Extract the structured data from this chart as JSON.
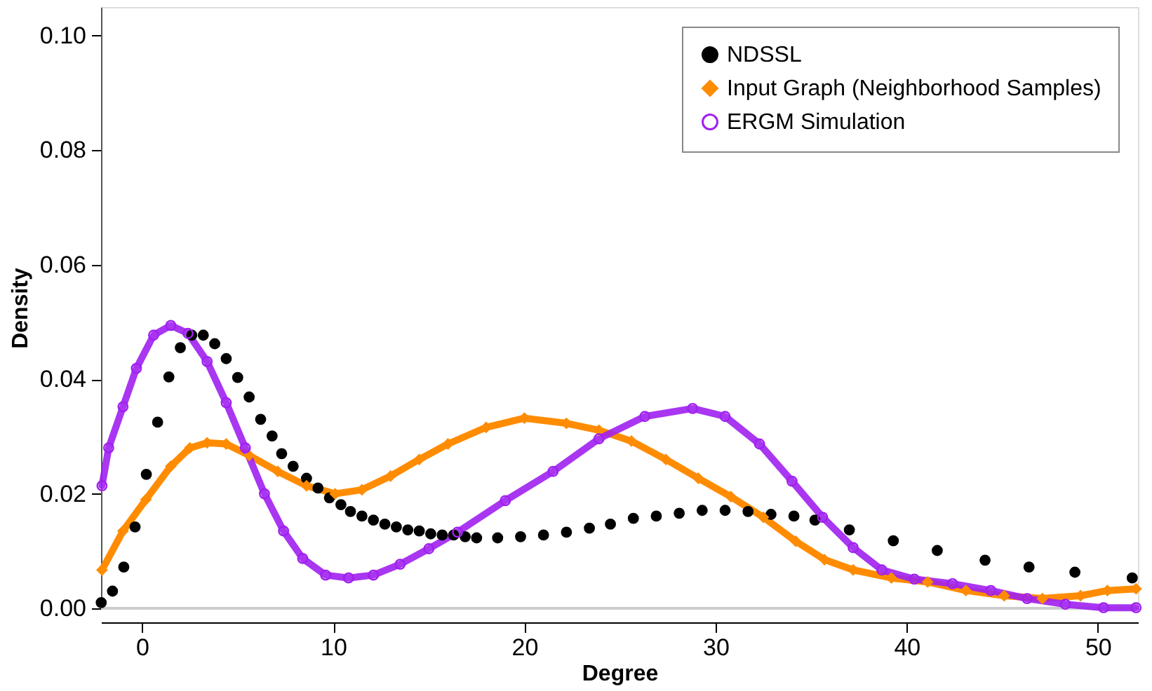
{
  "chart_data": {
    "type": "scatter",
    "xlabel": "Degree",
    "ylabel": "Density",
    "xlim": [
      -2.15,
      52.1
    ],
    "xticks": [
      0,
      10,
      20,
      30,
      40,
      50
    ],
    "ylim": [
      0,
      0.105
    ],
    "yticks": [
      {
        "value": 0,
        "label": "0.00"
      },
      {
        "value": 0.02,
        "label": "0.02"
      },
      {
        "value": 0.04,
        "label": "0.04"
      },
      {
        "value": 0.06,
        "label": "0.06"
      },
      {
        "value": 0.08,
        "label": "0.08"
      },
      {
        "value": 0.1,
        "label": "0.10"
      }
    ],
    "grid": false,
    "legend": "top right",
    "ref_lines": [
      {
        "axis": "y",
        "value": 0,
        "label": null,
        "color": "#cccccc"
      }
    ],
    "series": [
      {
        "name": "NDSSL",
        "marker": "circle",
        "color": "#000000",
        "x": [
          -2.14,
          -1.55,
          -0.96,
          -0.37,
          0.22,
          0.81,
          1.4,
          2.0,
          2.6,
          3.2,
          3.8,
          4.4,
          5.0,
          5.6,
          6.2,
          6.8,
          7.3,
          7.9,
          8.6,
          9.2,
          9.8,
          10.4,
          10.9,
          11.5,
          12.1,
          12.7,
          13.3,
          13.9,
          14.5,
          15.1,
          15.7,
          16.3,
          16.9,
          17.5,
          18.6,
          19.8,
          21.0,
          22.2,
          23.4,
          24.5,
          25.7,
          26.9,
          28.1,
          29.3,
          30.5,
          31.7,
          32.9,
          34.1,
          35.2,
          37.0,
          39.3,
          41.6,
          44.1,
          46.4,
          48.8,
          51.8
        ],
        "values": [
          0.001,
          0.003,
          0.0072,
          0.0142,
          0.0234,
          0.0325,
          0.0404,
          0.0455,
          0.0477,
          0.0477,
          0.0462,
          0.0436,
          0.0403,
          0.0369,
          0.033,
          0.0301,
          0.027,
          0.0248,
          0.0227,
          0.021,
          0.0193,
          0.0181,
          0.0169,
          0.0161,
          0.0154,
          0.0147,
          0.0142,
          0.0137,
          0.0135,
          0.013,
          0.0128,
          0.0128,
          0.0125,
          0.0123,
          0.0123,
          0.0125,
          0.0128,
          0.0133,
          0.014,
          0.0147,
          0.0157,
          0.0161,
          0.0166,
          0.0171,
          0.0171,
          0.0169,
          0.0164,
          0.0161,
          0.0154,
          0.0137,
          0.0118,
          0.0101,
          0.0084,
          0.0072,
          0.0063,
          0.0053
        ]
      },
      {
        "name": "Input Graph (Neighborhood Samples)",
        "type": "line",
        "marker": "diamond",
        "color": "#ff8c00",
        "x": [
          -2.1,
          -1.0,
          0.2,
          1.5,
          2.5,
          3.4,
          4.4,
          5.6,
          7.1,
          8.6,
          10.1,
          11.5,
          13.0,
          14.5,
          16.0,
          18.0,
          20.0,
          22.2,
          23.9,
          25.6,
          27.4,
          29.1,
          30.8,
          32.5,
          34.2,
          35.7,
          37.2,
          39.2,
          41.1,
          43.1,
          45.1,
          47.1,
          49.1,
          50.5,
          52.0
        ],
        "values": [
          0.0067,
          0.0135,
          0.019,
          0.0248,
          0.028,
          0.0289,
          0.0287,
          0.0267,
          0.0239,
          0.0214,
          0.02,
          0.0207,
          0.0231,
          0.026,
          0.0287,
          0.0316,
          0.0332,
          0.0323,
          0.0311,
          0.0292,
          0.026,
          0.0227,
          0.0195,
          0.0159,
          0.0117,
          0.0085,
          0.0067,
          0.0053,
          0.0046,
          0.0031,
          0.0022,
          0.0017,
          0.0022,
          0.0031,
          0.0034
        ]
      },
      {
        "name": "ERGM Simulation",
        "type": "line",
        "marker": "circle",
        "color": "#a020f0",
        "x": [
          -2.1,
          -1.75,
          -1.0,
          -0.3,
          0.6,
          1.5,
          2.4,
          3.4,
          4.4,
          5.4,
          6.4,
          7.4,
          8.4,
          9.6,
          10.8,
          12.1,
          13.5,
          15.0,
          16.5,
          19.0,
          21.5,
          23.9,
          26.3,
          28.8,
          30.5,
          32.3,
          34.0,
          35.6,
          37.2,
          38.7,
          40.4,
          42.4,
          44.4,
          46.3,
          48.3,
          50.3,
          52.0
        ],
        "values": [
          0.0214,
          0.028,
          0.0352,
          0.0419,
          0.0477,
          0.0494,
          0.048,
          0.0431,
          0.0359,
          0.028,
          0.02,
          0.0135,
          0.0087,
          0.0058,
          0.0053,
          0.0058,
          0.0077,
          0.0104,
          0.0133,
          0.0188,
          0.0239,
          0.0296,
          0.0335,
          0.0349,
          0.0335,
          0.0287,
          0.0222,
          0.0159,
          0.0106,
          0.0067,
          0.0051,
          0.0043,
          0.0031,
          0.0017,
          0.0007,
          0.0001,
          0.0001
        ]
      }
    ]
  }
}
